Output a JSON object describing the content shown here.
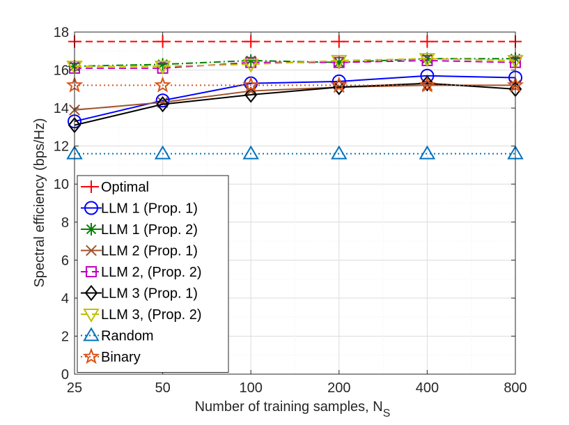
{
  "chart_data": {
    "type": "line",
    "xlabel": "Number of training samples, N",
    "xlabel_subscript": "S",
    "ylabel": "Spectral efficiency (bps/Hz)",
    "x_tick_labels": [
      "25",
      "50",
      "100",
      "200",
      "400",
      "800"
    ],
    "y_ticks": [
      0,
      2,
      4,
      6,
      8,
      10,
      12,
      14,
      16,
      18
    ],
    "ylim": [
      0,
      18
    ],
    "grid": true,
    "legend_position": "bottom-left",
    "series": [
      {
        "name": "Optimal",
        "color": "#ff0000",
        "dash": "dashed",
        "marker": "plus",
        "values": [
          17.5,
          17.5,
          17.5,
          17.5,
          17.5,
          17.5
        ]
      },
      {
        "name": "LLM 1 (Prop. 1)",
        "color": "#0000ff",
        "dash": "solid",
        "marker": "circle",
        "values": [
          13.3,
          14.4,
          15.3,
          15.4,
          15.7,
          15.6
        ]
      },
      {
        "name": "LLM 1 (Prop. 2)",
        "color": "#008000",
        "dash": "dashdot",
        "marker": "asterisk",
        "values": [
          16.2,
          16.3,
          16.5,
          16.4,
          16.6,
          16.6
        ]
      },
      {
        "name": "LLM 2 (Prop. 1)",
        "color": "#a0522d",
        "dash": "solid",
        "marker": "x",
        "values": [
          13.9,
          14.3,
          14.9,
          15.1,
          15.2,
          15.2
        ]
      },
      {
        "name": "LLM 2, (Prop. 2)",
        "color": "#c000c0",
        "dash": "dashed",
        "marker": "square",
        "values": [
          16.1,
          16.1,
          16.4,
          16.4,
          16.5,
          16.4
        ]
      },
      {
        "name": "LLM 3 (Prop. 1)",
        "color": "#000000",
        "dash": "solid",
        "marker": "diamond",
        "values": [
          13.1,
          14.2,
          14.7,
          15.1,
          15.3,
          15.0
        ]
      },
      {
        "name": "LLM 3, (Prop. 2)",
        "color": "#c0c000",
        "dash": "dashed",
        "marker": "triangle-down",
        "values": [
          16.2,
          16.2,
          16.3,
          16.5,
          16.6,
          16.5
        ]
      },
      {
        "name": "Random",
        "color": "#0072bd",
        "dash": "dotted",
        "marker": "triangle-up",
        "values": [
          11.6,
          11.6,
          11.6,
          11.6,
          11.6,
          11.6
        ]
      },
      {
        "name": "Binary",
        "color": "#d95319",
        "dash": "dotted",
        "marker": "star",
        "values": [
          15.2,
          15.2,
          15.2,
          15.2,
          15.2,
          15.2
        ]
      }
    ]
  }
}
